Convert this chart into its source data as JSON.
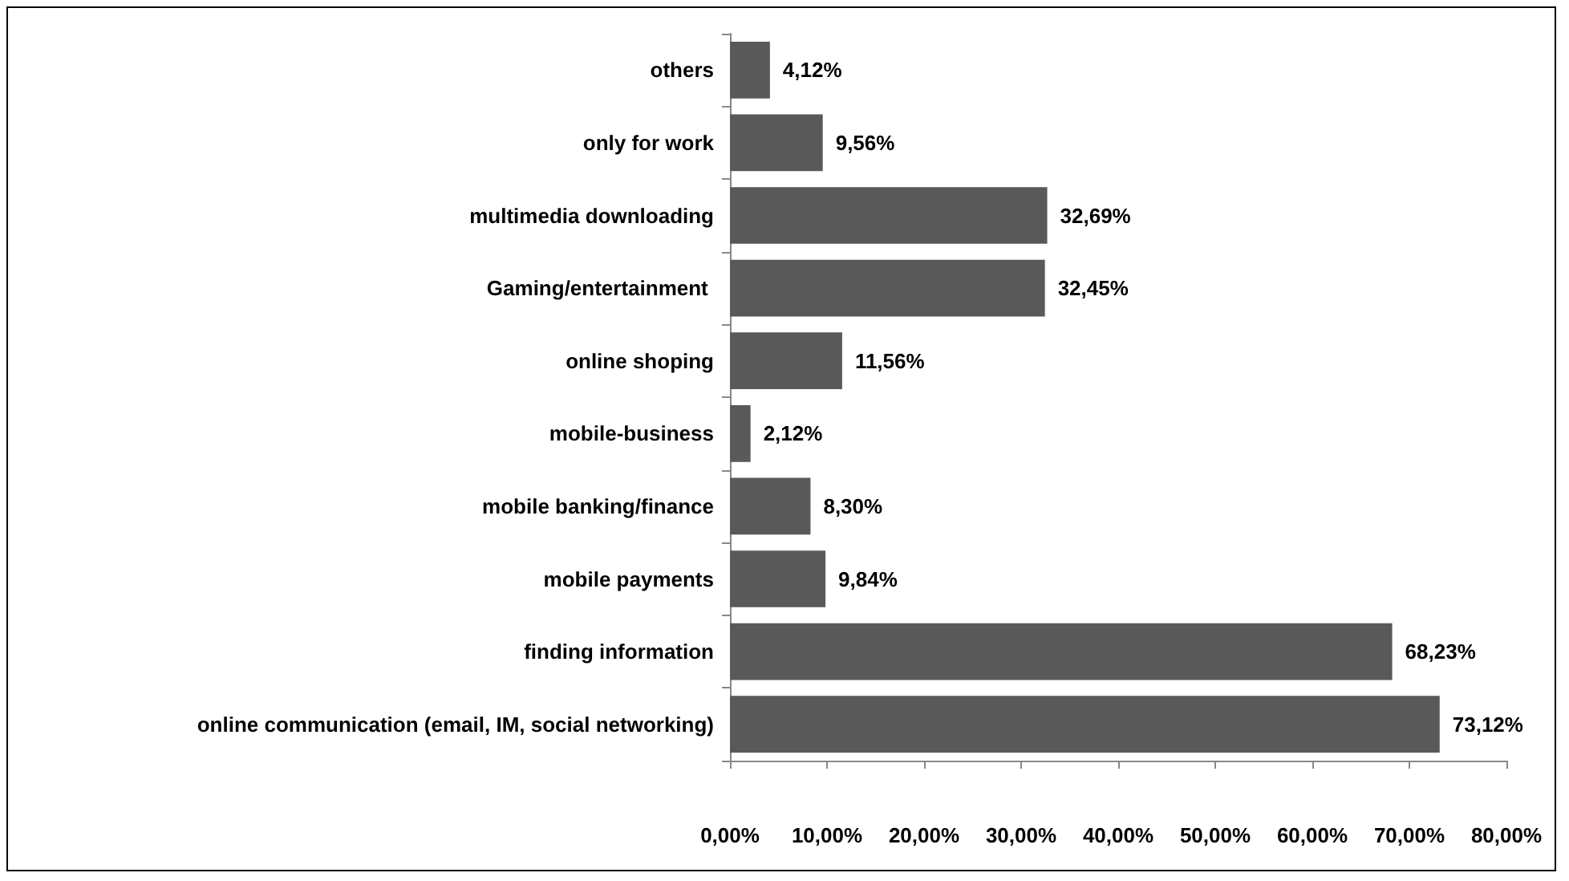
{
  "chart_data": {
    "type": "bar",
    "orientation": "horizontal",
    "categories": [
      "others",
      "only for work",
      "multimedia downloading",
      "Gaming/entertainment ",
      "online shoping",
      "mobile-business",
      "mobile banking/finance",
      "mobile payments",
      "finding information",
      "online communication (email, IM, social networking)"
    ],
    "values": [
      4.12,
      9.56,
      32.69,
      32.45,
      11.56,
      2.12,
      8.3,
      9.84,
      68.23,
      73.12
    ],
    "value_labels": [
      "4,12%",
      "9,56%",
      "32,69%",
      "32,45%",
      "11,56%",
      "2,12%",
      "8,30%",
      "9,84%",
      "68,23%",
      "73,12%"
    ],
    "color": "#595959",
    "xlim": [
      0,
      80
    ],
    "xticks": [
      {
        "value": 0,
        "label": "0,00%"
      },
      {
        "value": 10,
        "label": "10,00%"
      },
      {
        "value": 20,
        "label": "20,00%"
      },
      {
        "value": 30,
        "label": "30,00%"
      },
      {
        "value": 40,
        "label": "40,00%"
      },
      {
        "value": 50,
        "label": "50,00%"
      },
      {
        "value": 60,
        "label": "60,00%"
      },
      {
        "value": 70,
        "label": "70,00%"
      },
      {
        "value": 80,
        "label": "80,00%"
      }
    ],
    "grid": false
  }
}
